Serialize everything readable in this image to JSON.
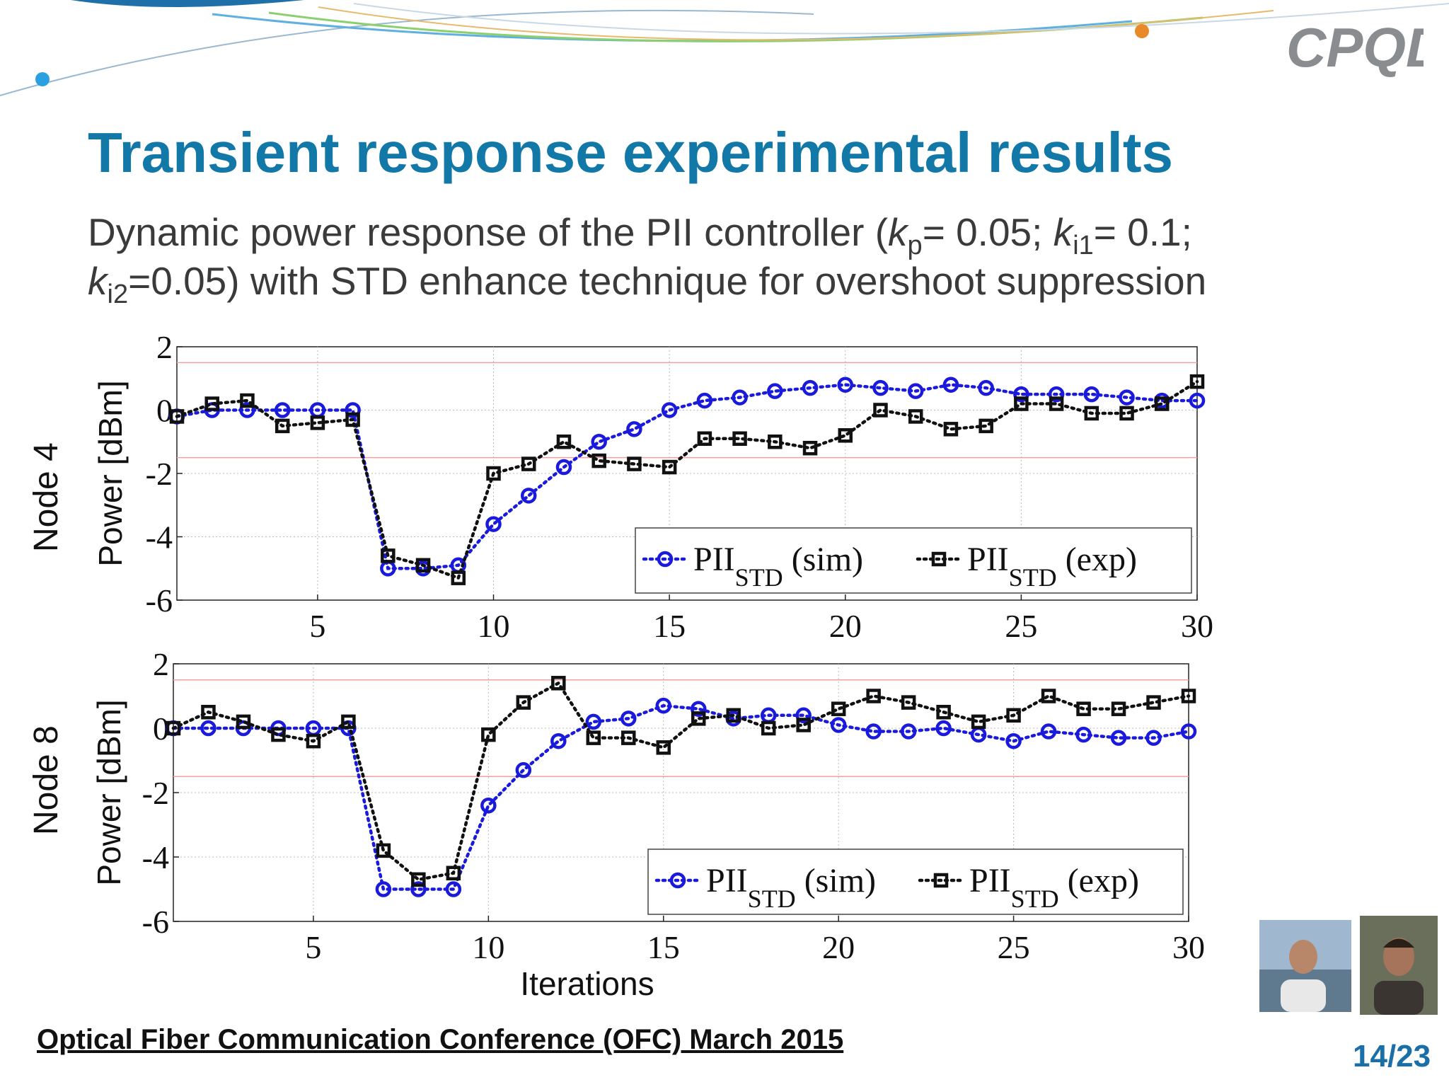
{
  "slide": {
    "title": "Transient response experimental results",
    "subtitle_line1_pre": "Dynamic power response of the PII controller (",
    "kp": "k",
    "kp_sub": "p",
    "kp_val": "= 0.05; ",
    "ki1": "k",
    "ki1_sub": "i1",
    "ki1_val": "= 0.1;",
    "ki2": "k",
    "ki2_sub": "i2",
    "subtitle_line2_post": "=0.05) with STD enhance technique for overshoot suppression",
    "footer": "Optical Fiber Communication Conference (OFC) March 2015",
    "page": "14/23",
    "node_labels": [
      "Node 4",
      "Node 8"
    ],
    "colors": {
      "title": "#1178a8",
      "sim": "#1a1adc",
      "exp": "#111111",
      "limit": "#f2a0a0"
    }
  },
  "chart_data": [
    {
      "type": "line",
      "title": "",
      "xlabel": "",
      "ylabel": "Power [dBm]",
      "xlim": [
        1,
        30
      ],
      "ylim": [
        -6,
        2
      ],
      "xticks": [
        "5",
        "10",
        "15",
        "20",
        "25",
        "30"
      ],
      "yticks": [
        "2",
        "0",
        "-2",
        "-4",
        "-6"
      ],
      "reference_lines": [
        1.5,
        -1.5
      ],
      "legend": "bottom-right",
      "grid": true,
      "x": [
        1,
        2,
        3,
        4,
        5,
        6,
        7,
        8,
        9,
        10,
        11,
        12,
        13,
        14,
        15,
        16,
        17,
        18,
        19,
        20,
        21,
        22,
        23,
        24,
        25,
        26,
        27,
        28,
        29,
        30
      ],
      "series": [
        {
          "name": "PII",
          "name_sub": "STD",
          "name_suffix": " (sim)",
          "marker": "circle",
          "values": [
            -0.2,
            0,
            0,
            0,
            0,
            0,
            -5,
            -5,
            -4.9,
            -3.6,
            -2.7,
            -1.8,
            -1,
            -0.6,
            0,
            0.3,
            0.4,
            0.6,
            0.7,
            0.8,
            0.7,
            0.6,
            0.8,
            0.7,
            0.5,
            0.5,
            0.5,
            0.4,
            0.3,
            0.3
          ]
        },
        {
          "name": "PII",
          "name_sub": "STD",
          "name_suffix": " (exp)",
          "marker": "square",
          "values": [
            -0.2,
            0.2,
            0.3,
            -0.5,
            -0.4,
            -0.3,
            -4.6,
            -4.9,
            -5.3,
            -2,
            -1.7,
            -1,
            -1.6,
            -1.7,
            -1.8,
            -0.9,
            -0.9,
            -1,
            -1.2,
            -0.8,
            0,
            -0.2,
            -0.6,
            -0.5,
            0.2,
            0.2,
            -0.1,
            -0.1,
            0.2,
            0.9
          ]
        }
      ]
    },
    {
      "type": "line",
      "title": "",
      "xlabel": "Iterations",
      "ylabel": "Power [dBm]",
      "xlim": [
        1,
        30
      ],
      "ylim": [
        -6,
        2
      ],
      "xticks": [
        "5",
        "10",
        "15",
        "20",
        "25",
        "30"
      ],
      "yticks": [
        "2",
        "0",
        "-2",
        "-4",
        "-6"
      ],
      "reference_lines": [
        1.5,
        -1.5
      ],
      "legend": "bottom-right",
      "grid": true,
      "x": [
        1,
        2,
        3,
        4,
        5,
        6,
        7,
        8,
        9,
        10,
        11,
        12,
        13,
        14,
        15,
        16,
        17,
        18,
        19,
        20,
        21,
        22,
        23,
        24,
        25,
        26,
        27,
        28,
        29,
        30
      ],
      "series": [
        {
          "name": "PII",
          "name_sub": "STD",
          "name_suffix": " (sim)",
          "marker": "circle",
          "values": [
            0,
            0,
            0,
            0,
            0,
            0,
            -5,
            -5,
            -5,
            -2.4,
            -1.3,
            -0.4,
            0.2,
            0.3,
            0.7,
            0.6,
            0.3,
            0.4,
            0.4,
            0.1,
            -0.1,
            -0.1,
            0,
            -0.2,
            -0.4,
            -0.1,
            -0.2,
            -0.3,
            -0.3,
            -0.1
          ]
        },
        {
          "name": "PII",
          "name_sub": "STD",
          "name_suffix": " (exp)",
          "marker": "square",
          "values": [
            0,
            0.5,
            0.2,
            -0.2,
            -0.4,
            0.2,
            -3.8,
            -4.7,
            -4.5,
            -0.2,
            0.8,
            1.4,
            -0.3,
            -0.3,
            -0.6,
            0.3,
            0.4,
            0,
            0.1,
            0.6,
            1,
            0.8,
            0.5,
            0.2,
            0.4,
            1,
            0.6,
            0.6,
            0.8,
            1
          ]
        }
      ]
    }
  ]
}
